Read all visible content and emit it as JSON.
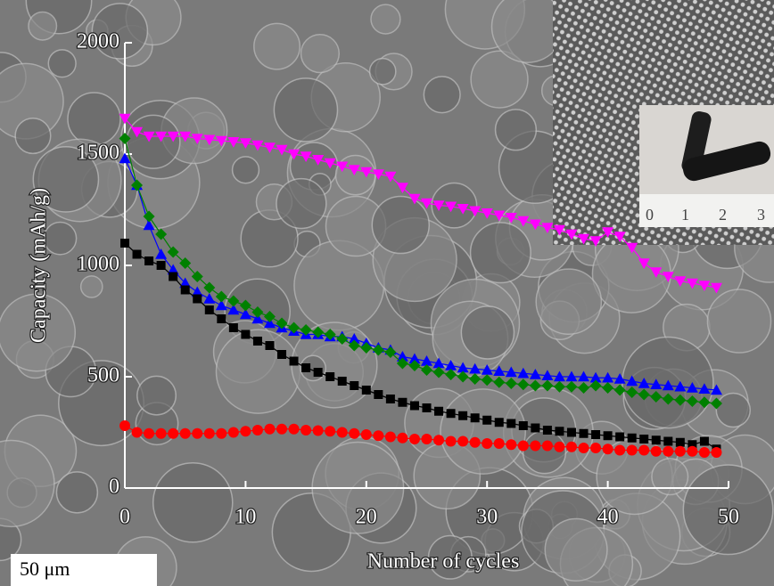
{
  "chart_data": {
    "type": "line",
    "x_label": "Number of cycles",
    "y_label": "Capacity (mAh/g)",
    "x": [
      0,
      1,
      2,
      3,
      4,
      5,
      6,
      7,
      8,
      9,
      10,
      11,
      12,
      13,
      14,
      15,
      16,
      17,
      18,
      19,
      20,
      21,
      22,
      23,
      24,
      25,
      26,
      27,
      28,
      29,
      30,
      31,
      32,
      33,
      34,
      35,
      36,
      37,
      38,
      39,
      40,
      41,
      42,
      43,
      44,
      45,
      46,
      47,
      48,
      49
    ],
    "xlim": [
      0,
      50
    ],
    "xticks": [
      0,
      10,
      20,
      30,
      40,
      50
    ],
    "ylim": [
      0,
      2000
    ],
    "yticks": [
      0,
      500,
      1000,
      1500,
      2000
    ],
    "series": [
      {
        "color": "#ff00ff",
        "marker": "triangle-down",
        "values": [
          1660,
          1600,
          1580,
          1580,
          1580,
          1580,
          1570,
          1565,
          1560,
          1555,
          1550,
          1540,
          1530,
          1520,
          1500,
          1490,
          1475,
          1460,
          1445,
          1430,
          1420,
          1410,
          1400,
          1350,
          1300,
          1280,
          1270,
          1265,
          1255,
          1245,
          1235,
          1225,
          1215,
          1200,
          1185,
          1170,
          1160,
          1140,
          1120,
          1110,
          1150,
          1130,
          1080,
          1010,
          970,
          950,
          930,
          920,
          910,
          900
        ]
      },
      {
        "color": "#0000ff",
        "marker": "triangle",
        "values": [
          1480,
          1360,
          1180,
          1050,
          980,
          920,
          880,
          850,
          820,
          800,
          780,
          760,
          740,
          720,
          705,
          690,
          690,
          680,
          680,
          670,
          650,
          630,
          620,
          590,
          580,
          570,
          560,
          550,
          540,
          535,
          530,
          525,
          520,
          515,
          510,
          505,
          500,
          500,
          500,
          495,
          495,
          490,
          480,
          470,
          465,
          460,
          455,
          450,
          445,
          440
        ]
      },
      {
        "color": "#008000",
        "marker": "diamond",
        "values": [
          1570,
          1360,
          1220,
          1140,
          1060,
          1010,
          950,
          900,
          860,
          840,
          820,
          790,
          770,
          740,
          720,
          710,
          700,
          690,
          670,
          640,
          630,
          620,
          610,
          560,
          550,
          530,
          520,
          510,
          500,
          490,
          485,
          475,
          470,
          465,
          460,
          460,
          455,
          455,
          450,
          460,
          450,
          440,
          430,
          420,
          410,
          400,
          395,
          390,
          385,
          380
        ]
      },
      {
        "color": "#000000",
        "marker": "square",
        "values": [
          1100,
          1050,
          1020,
          1000,
          950,
          890,
          850,
          800,
          760,
          720,
          690,
          660,
          640,
          600,
          570,
          540,
          520,
          500,
          480,
          460,
          440,
          420,
          400,
          385,
          370,
          360,
          345,
          335,
          325,
          315,
          305,
          295,
          290,
          280,
          270,
          260,
          255,
          250,
          245,
          240,
          235,
          230,
          225,
          220,
          215,
          210,
          205,
          195,
          210,
          175
        ]
      },
      {
        "color": "#ff0000",
        "marker": "circle",
        "values": [
          280,
          250,
          245,
          245,
          245,
          245,
          245,
          245,
          245,
          250,
          255,
          260,
          265,
          265,
          265,
          260,
          258,
          255,
          250,
          245,
          240,
          235,
          230,
          225,
          220,
          220,
          215,
          210,
          210,
          205,
          200,
          200,
          195,
          190,
          190,
          190,
          185,
          185,
          180,
          180,
          175,
          170,
          170,
          170,
          165,
          165,
          165,
          165,
          160,
          160
        ]
      }
    ]
  },
  "scale_bar": "50 μm",
  "inset": {
    "ruler_labels": [
      "0",
      "1",
      "2",
      "3"
    ]
  }
}
